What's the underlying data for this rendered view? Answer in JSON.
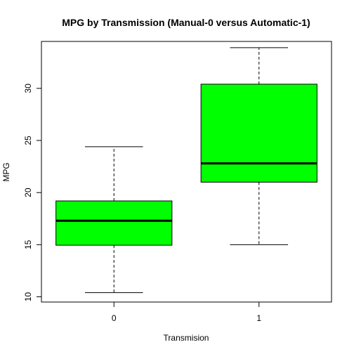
{
  "chart_data": {
    "type": "boxplot",
    "title": "MPG by Transmission (Manual-0 versus Automatic-1)",
    "xlabel": "Transmision",
    "ylabel": "MPG",
    "categories": [
      "0",
      "1"
    ],
    "boxes": [
      {
        "category": "0",
        "whisker_low": 10.4,
        "q1": 14.95,
        "median": 17.3,
        "q3": 19.2,
        "whisker_high": 24.4
      },
      {
        "category": "1",
        "whisker_low": 15.0,
        "q1": 21.0,
        "median": 22.8,
        "q3": 30.4,
        "whisker_high": 33.9
      }
    ],
    "yticks": [
      10,
      15,
      20,
      25,
      30
    ],
    "ylim": [
      9.5,
      34.5
    ],
    "box_color": "#00ff00",
    "grid": false,
    "legend": "none"
  }
}
